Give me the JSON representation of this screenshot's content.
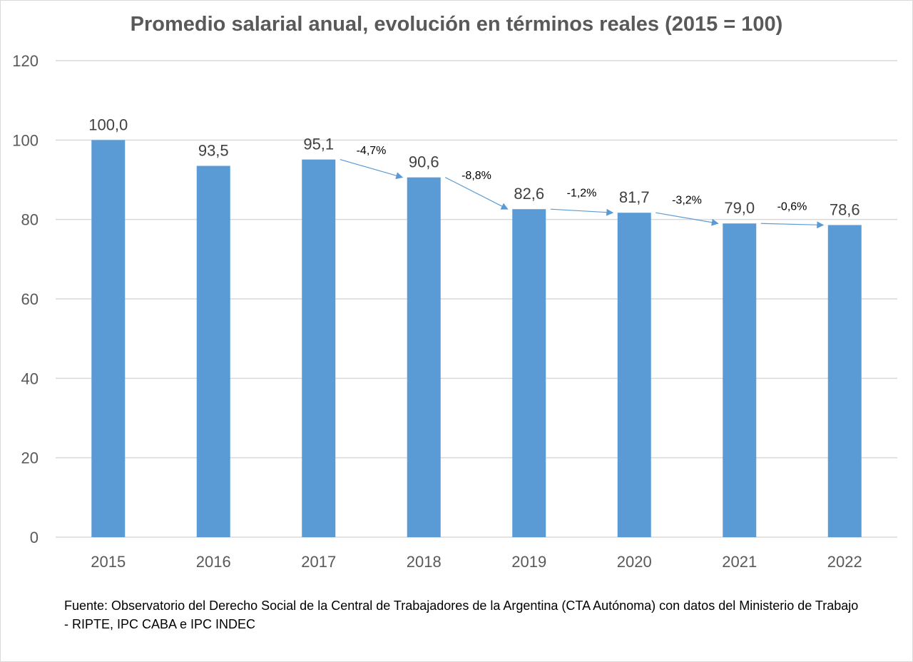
{
  "chart_data": {
    "type": "bar",
    "title": "Promedio salarial anual, evolución en términos reales (2015 = 100)",
    "categories": [
      "2015",
      "2016",
      "2017",
      "2018",
      "2019",
      "2020",
      "2021",
      "2022"
    ],
    "values": [
      100.0,
      93.5,
      95.1,
      90.6,
      82.6,
      81.7,
      79.0,
      78.6
    ],
    "data_labels": [
      "100,0",
      "93,5",
      "95,1",
      "90,6",
      "82,6",
      "81,7",
      "79,0",
      "78,6"
    ],
    "annotations": [
      {
        "from": "2017",
        "to": "2018",
        "label": "-4,7%"
      },
      {
        "from": "2018",
        "to": "2019",
        "label": "-8,8%"
      },
      {
        "from": "2019",
        "to": "2020",
        "label": "-1,2%"
      },
      {
        "from": "2020",
        "to": "2021",
        "label": "-3,2%"
      },
      {
        "from": "2021",
        "to": "2022",
        "label": "-0,6%"
      }
    ],
    "ylim": [
      0,
      120
    ],
    "yticks": [
      0,
      20,
      40,
      60,
      80,
      100,
      120
    ],
    "xlabel": "",
    "ylabel": "",
    "grid": true,
    "legend": "none",
    "bar_color": "#5b9bd5",
    "arrow_color": "#5b9bd5"
  },
  "source": "Fuente: Observatorio del Derecho Social de la Central de Trabajadores de la Argentina (CTA Autónoma) con datos del Ministerio de Trabajo - RIPTE, IPC CABA e IPC INDEC"
}
